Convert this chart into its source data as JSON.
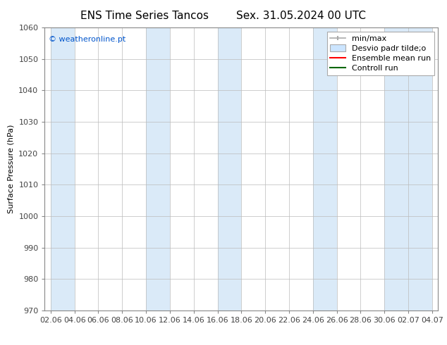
{
  "title_left": "ENS Time Series Tancos",
  "title_right": "Sex. 31.05.2024 00 UTC",
  "ylabel": "Surface Pressure (hPa)",
  "ylim": [
    970,
    1060
  ],
  "yticks": [
    970,
    980,
    990,
    1000,
    1010,
    1020,
    1030,
    1040,
    1050,
    1060
  ],
  "background_color": "#ffffff",
  "plot_bg_color": "#ffffff",
  "watermark": "© weatheronline.pt",
  "watermark_color": "#0055cc",
  "legend_labels": [
    "min/max",
    "Desvio padr tilde;o",
    "Ensemble mean run",
    "Controll run"
  ],
  "legend_colors": [
    "#aaaaaa",
    "#cce5ff",
    "#ff0000",
    "#006600"
  ],
  "shaded_bands": [
    {
      "x_start": 0.0,
      "x_end": 2.0
    },
    {
      "x_start": 8.0,
      "x_end": 10.0
    },
    {
      "x_start": 14.0,
      "x_end": 16.0
    },
    {
      "x_start": 22.0,
      "x_end": 24.0
    },
    {
      "x_start": 28.0,
      "x_end": 32.0
    }
  ],
  "shaded_color": "#daeaf8",
  "xtick_labels": [
    "02.06",
    "04.06",
    "06.06",
    "08.06",
    "10.06",
    "12.06",
    "14.06",
    "16.06",
    "18.06",
    "20.06",
    "22.06",
    "24.06",
    "26.06",
    "28.06",
    "30.06",
    "02.07",
    "04.07"
  ],
  "x_values": [
    0,
    2,
    4,
    6,
    8,
    10,
    12,
    14,
    16,
    18,
    20,
    22,
    24,
    26,
    28,
    30,
    32
  ],
  "xlim": [
    -0.5,
    32.5
  ],
  "grid_color": "#bbbbbb",
  "spine_color": "#888888",
  "tick_color": "#444444",
  "font_size_title": 11,
  "font_size_axis": 8,
  "font_size_tick": 8,
  "font_size_legend": 8,
  "font_size_watermark": 8
}
